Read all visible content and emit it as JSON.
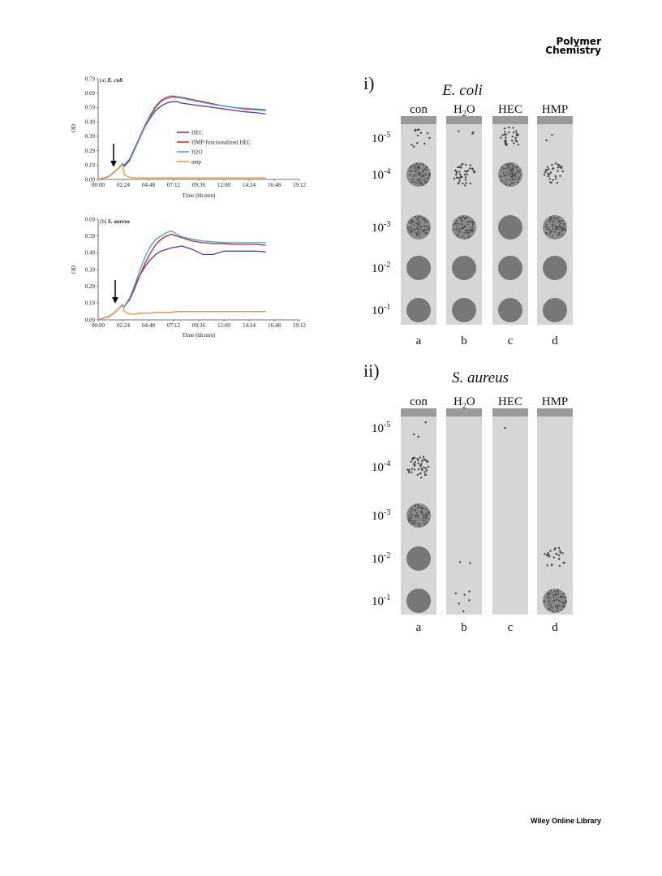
{
  "header": {
    "journal_line1": "Polymer",
    "journal_line2": "Chemistry"
  },
  "footer": {
    "text": "Wiley Online Library"
  },
  "chart_data": [
    {
      "type": "line",
      "panel_label": "(a)",
      "title": "E. coli",
      "xlabel": "Time (hh:mm)",
      "ylabel": "OD",
      "x_ticks": [
        "00:00",
        "02:24",
        "04:48",
        "07:12",
        "09:36",
        "12:00",
        "14:24",
        "16:48",
        "19:12"
      ],
      "y_ticks": [
        0.09,
        0.19,
        0.29,
        0.39,
        0.49,
        0.59,
        0.69,
        0.79
      ],
      "ylim": [
        0.09,
        0.79
      ],
      "xlim_hours": [
        0,
        19.2
      ],
      "legend_position": "center-right",
      "x_hours": [
        0,
        0.5,
        1,
        1.5,
        2,
        2.3,
        2.5,
        3,
        3.5,
        4,
        4.5,
        5,
        5.5,
        6,
        6.5,
        7,
        7.5,
        8,
        9,
        10,
        11,
        12,
        13,
        14,
        15,
        16
      ],
      "series": [
        {
          "name": "HEC",
          "color": "#6b2fa0",
          "values": [
            0.09,
            0.1,
            0.11,
            0.14,
            0.17,
            0.2,
            0.19,
            0.23,
            0.31,
            0.39,
            0.46,
            0.52,
            0.57,
            0.6,
            0.62,
            0.63,
            0.63,
            0.62,
            0.61,
            0.6,
            0.59,
            0.58,
            0.57,
            0.56,
            0.555,
            0.545
          ]
        },
        {
          "name": "HMP-functionalized HEC",
          "color": "#d42020",
          "values": [
            0.09,
            0.1,
            0.11,
            0.14,
            0.17,
            0.2,
            0.18,
            0.22,
            0.3,
            0.39,
            0.47,
            0.54,
            0.6,
            0.64,
            0.66,
            0.67,
            0.665,
            0.66,
            0.645,
            0.63,
            0.615,
            0.6,
            0.59,
            0.58,
            0.575,
            0.57
          ]
        },
        {
          "name": "H2O",
          "color": "#3fa4cf",
          "values": [
            0.09,
            0.1,
            0.11,
            0.14,
            0.17,
            0.2,
            0.18,
            0.22,
            0.3,
            0.38,
            0.46,
            0.53,
            0.59,
            0.63,
            0.65,
            0.66,
            0.66,
            0.655,
            0.64,
            0.625,
            0.61,
            0.6,
            0.59,
            0.585,
            0.58,
            0.575
          ]
        },
        {
          "name": "amp",
          "color": "#f0903a",
          "values": [
            0.09,
            0.1,
            0.11,
            0.14,
            0.17,
            0.2,
            0.12,
            0.105,
            0.1,
            0.1,
            0.1,
            0.1,
            0.1,
            0.1,
            0.1,
            0.1,
            0.1,
            0.1,
            0.1,
            0.1,
            0.1,
            0.1,
            0.1,
            0.1,
            0.1,
            0.1
          ]
        }
      ]
    },
    {
      "type": "line",
      "panel_label": "(b)",
      "title": "S. aureus",
      "xlabel": "Time (hh:mm)",
      "ylabel": "OD",
      "x_ticks": [
        "00:00",
        "02:24",
        "04:48",
        "07:12",
        "09:36",
        "12:00",
        "14:24",
        "16:48",
        "19:12"
      ],
      "y_ticks": [
        0.09,
        0.19,
        0.29,
        0.39,
        0.49,
        0.59,
        0.69
      ],
      "ylim": [
        0.09,
        0.69
      ],
      "xlim_hours": [
        0,
        19.2
      ],
      "x_hours": [
        0,
        0.5,
        1,
        1.5,
        2,
        2.3,
        2.5,
        3,
        3.5,
        4,
        4.5,
        5,
        5.5,
        6,
        6.5,
        7,
        7.5,
        8,
        9,
        10,
        11,
        12,
        13,
        14,
        15,
        16
      ],
      "series": [
        {
          "name": "HEC",
          "color": "#6b2fa0",
          "values": [
            0.09,
            0.1,
            0.11,
            0.13,
            0.16,
            0.18,
            0.17,
            0.22,
            0.29,
            0.36,
            0.41,
            0.45,
            0.48,
            0.5,
            0.51,
            0.52,
            0.525,
            0.53,
            0.51,
            0.48,
            0.48,
            0.5,
            0.5,
            0.5,
            0.5,
            0.495
          ]
        },
        {
          "name": "HMP-functionalized HEC",
          "color": "#d42020",
          "values": [
            0.09,
            0.1,
            0.11,
            0.13,
            0.16,
            0.18,
            0.17,
            0.21,
            0.28,
            0.36,
            0.43,
            0.49,
            0.54,
            0.57,
            0.59,
            0.6,
            0.59,
            0.58,
            0.56,
            0.55,
            0.545,
            0.545,
            0.54,
            0.54,
            0.54,
            0.535
          ]
        },
        {
          "name": "H2O",
          "color": "#3fa4cf",
          "values": [
            0.09,
            0.1,
            0.11,
            0.13,
            0.16,
            0.18,
            0.17,
            0.22,
            0.3,
            0.39,
            0.47,
            0.53,
            0.57,
            0.59,
            0.61,
            0.62,
            0.6,
            0.585,
            0.57,
            0.56,
            0.555,
            0.55,
            0.55,
            0.55,
            0.55,
            0.55
          ]
        },
        {
          "name": "amp",
          "color": "#f0903a",
          "values": [
            0.09,
            0.1,
            0.11,
            0.13,
            0.16,
            0.18,
            0.14,
            0.125,
            0.125,
            0.13,
            0.13,
            0.13,
            0.135,
            0.135,
            0.135,
            0.135,
            0.14,
            0.14,
            0.14,
            0.14,
            0.14,
            0.14,
            0.14,
            0.14,
            0.14,
            0.14
          ]
        }
      ]
    }
  ],
  "plates": {
    "i": {
      "roman": "i)",
      "organism": "E. coli",
      "columns": [
        "con",
        "H",
        "HEC",
        "HMP"
      ],
      "letters": [
        "a",
        "b",
        "c",
        "d"
      ],
      "dilutions": [
        {
          "base": "10",
          "exp": "-5"
        },
        {
          "base": "10",
          "exp": "-4"
        },
        {
          "base": "10",
          "exp": "-3"
        },
        {
          "base": "10",
          "exp": "-2"
        },
        {
          "base": "10",
          "exp": "-1"
        }
      ]
    },
    "ii": {
      "roman": "ii)",
      "organism": "S. aureus",
      "columns": [
        "con",
        "H",
        "HEC",
        "HMP"
      ],
      "letters": [
        "a",
        "b",
        "c",
        "d"
      ],
      "dilutions": [
        {
          "base": "10",
          "exp": "-5"
        },
        {
          "base": "10",
          "exp": "-4"
        },
        {
          "base": "10",
          "exp": "-3"
        },
        {
          "base": "10",
          "exp": "-2"
        },
        {
          "base": "10",
          "exp": "-1"
        }
      ]
    },
    "water_sub": "2",
    "water_tail": "O"
  }
}
